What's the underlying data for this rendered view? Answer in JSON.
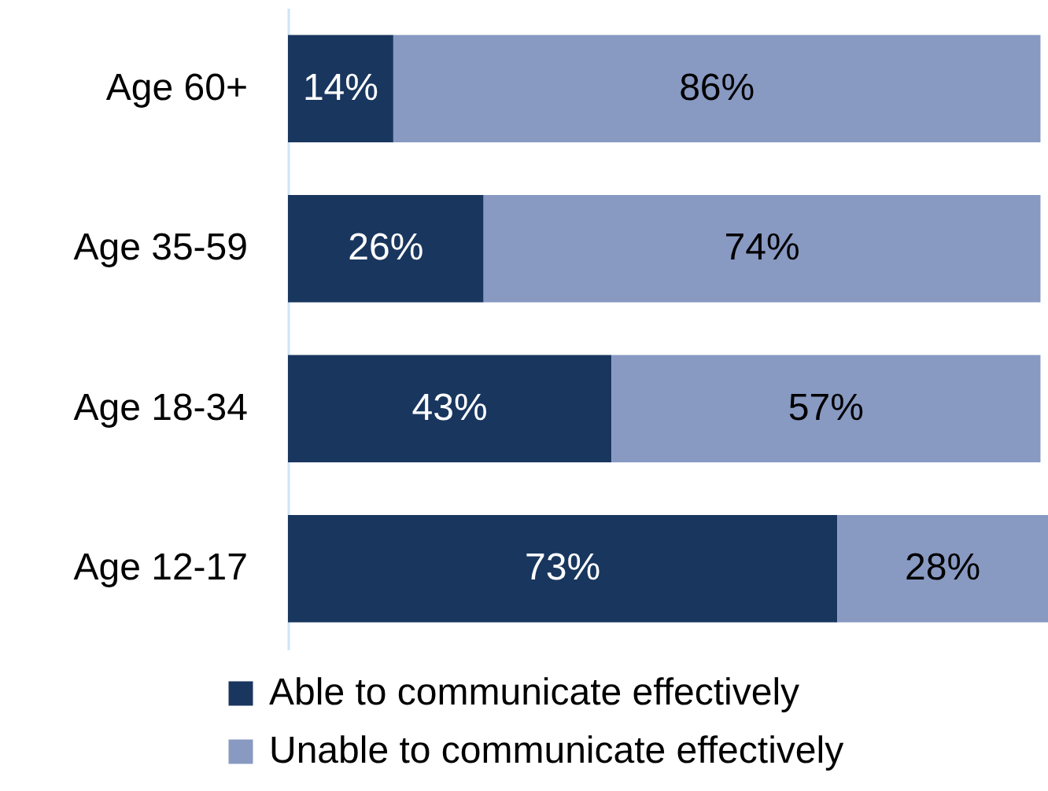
{
  "chart_data": {
    "type": "bar",
    "orientation": "horizontal",
    "stacked": true,
    "categories": [
      "Age 60+",
      "Age 35-59",
      "Age 18-34",
      "Age 12-17"
    ],
    "series": [
      {
        "name": "Able to communicate effectively",
        "color": "#19365e",
        "values": [
          14,
          26,
          43,
          73
        ],
        "value_labels": [
          "14%",
          "26%",
          "43%",
          "73%"
        ]
      },
      {
        "name": "Unable to communicate effectively",
        "color": "#8899c2",
        "values": [
          86,
          74,
          57,
          28
        ],
        "value_labels": [
          "86%",
          "74%",
          "57%",
          "28%"
        ]
      }
    ],
    "xlim": [
      0,
      101
    ],
    "legend": "bottom",
    "tick_labels": "y"
  }
}
